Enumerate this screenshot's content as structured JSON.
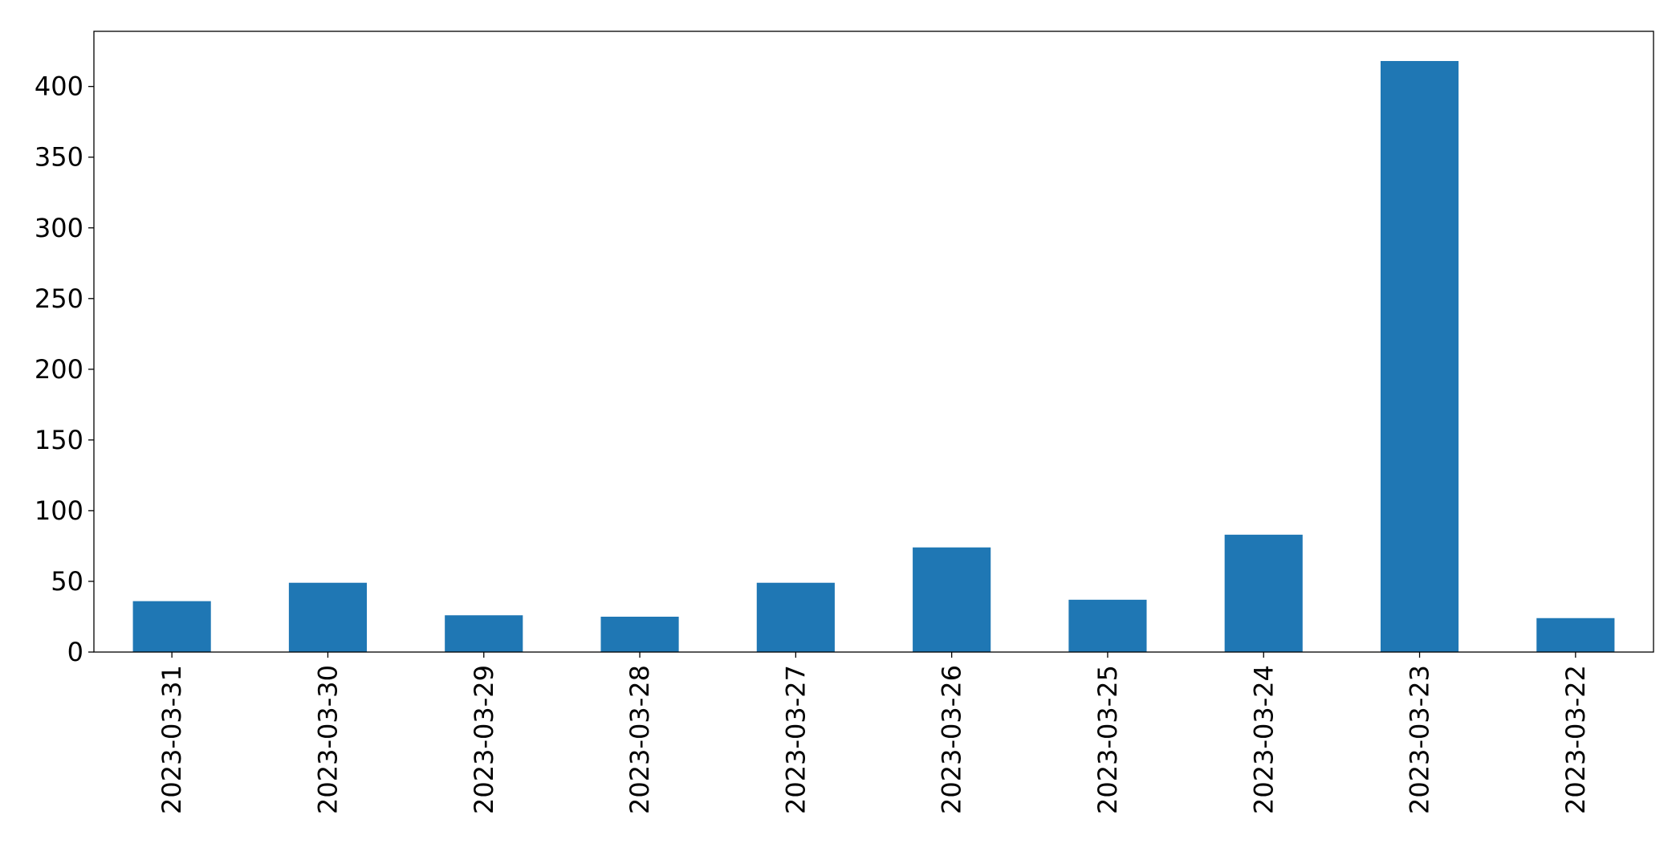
{
  "chart_data": {
    "type": "bar",
    "title": "",
    "xlabel": "",
    "ylabel": "",
    "categories": [
      "2023-03-31",
      "2023-03-30",
      "2023-03-29",
      "2023-03-28",
      "2023-03-27",
      "2023-03-26",
      "2023-03-25",
      "2023-03-24",
      "2023-03-23",
      "2023-03-22"
    ],
    "values": [
      36,
      49,
      26,
      25,
      49,
      74,
      37,
      83,
      418,
      24
    ],
    "ylim": [
      0,
      439
    ],
    "yticks": [
      0,
      50,
      100,
      150,
      200,
      250,
      300,
      350,
      400
    ],
    "ytick_labels": [
      "0",
      "50",
      "100",
      "150",
      "200",
      "250",
      "300",
      "350",
      "400"
    ],
    "bar_color": "#1f77b4",
    "grid": false,
    "legend": "none"
  }
}
